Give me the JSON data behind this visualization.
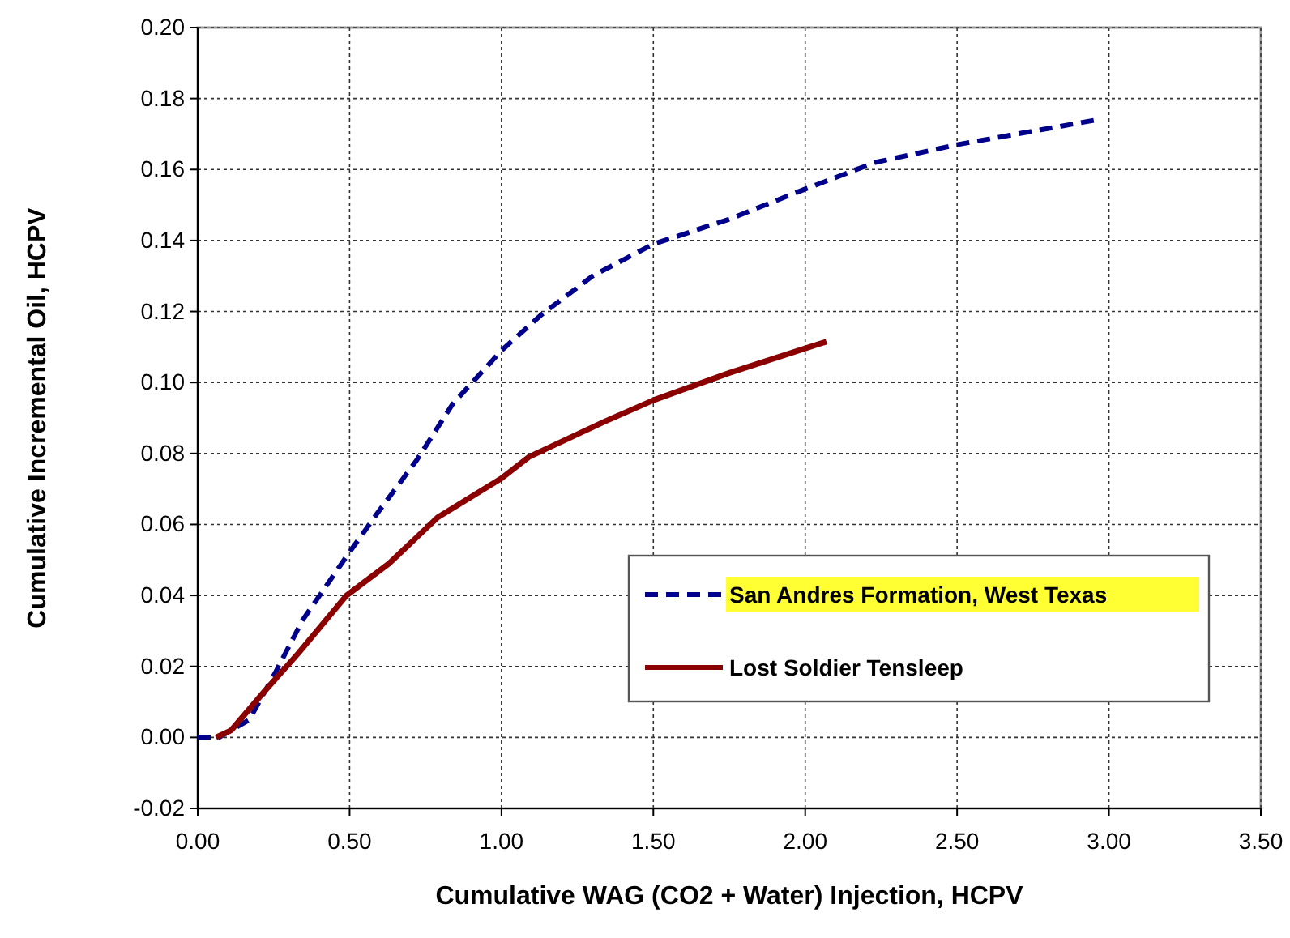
{
  "chart_data": {
    "type": "line",
    "xlabel": "Cumulative WAG (CO2 + Water) Injection, HCPV",
    "ylabel": "Cumulative Incremental Oil, HCPV",
    "xlim": [
      0,
      3.5
    ],
    "xticks": [
      {
        "value": 0,
        "label": "0.00"
      },
      {
        "value": 0.5,
        "label": "0.50"
      },
      {
        "value": 1,
        "label": "1.00"
      },
      {
        "value": 1.5,
        "label": "1.50"
      },
      {
        "value": 2,
        "label": "2.00"
      },
      {
        "value": 2.5,
        "label": "2.50"
      },
      {
        "value": 3,
        "label": "3.00"
      },
      {
        "value": 3.5,
        "label": "3.50"
      }
    ],
    "ylim": [
      -0.02,
      0.2
    ],
    "yticks": [
      {
        "value": -0.02,
        "label": "-0.02"
      },
      {
        "value": 0,
        "label": "0.00"
      },
      {
        "value": 0.02,
        "label": "0.02"
      },
      {
        "value": 0.04,
        "label": "0.04"
      },
      {
        "value": 0.06,
        "label": "0.06"
      },
      {
        "value": 0.08,
        "label": "0.08"
      },
      {
        "value": 0.1,
        "label": "0.10"
      },
      {
        "value": 0.12,
        "label": "0.12"
      },
      {
        "value": 0.14,
        "label": "0.14"
      },
      {
        "value": 0.16,
        "label": "0.16"
      },
      {
        "value": 0.18,
        "label": "0.18"
      },
      {
        "value": 0.2,
        "label": "0.20"
      }
    ],
    "grid": true,
    "legend": "bottom right",
    "marker": "none",
    "series": [
      {
        "name": "San Andres Formation, West Texas",
        "color": "#00008b",
        "line_style": "dashed",
        "x": [
          0,
          0.07,
          0.17,
          0.26,
          0.345,
          0.49,
          0.59,
          0.72,
          0.84,
          1.0,
          1.13,
          1.3,
          1.5,
          1.75,
          2.0,
          2.23,
          2.5,
          2.73,
          2.96
        ],
        "values": [
          0,
          0,
          0.005,
          0.019,
          0.033,
          0.051,
          0.063,
          0.078,
          0.094,
          0.109,
          0.119,
          0.13,
          0.139,
          0.146,
          0.1545,
          0.162,
          0.167,
          0.1705,
          0.174
        ]
      },
      {
        "name": "Lost Soldier Tensleep",
        "color": "#8b0000",
        "line_style": "solid",
        "x": [
          0.06,
          0.11,
          0.22,
          0.33,
          0.49,
          0.63,
          0.79,
          1.0,
          1.09,
          1.34,
          1.5,
          1.75,
          2.0,
          2.07
        ],
        "values": [
          0,
          0.002,
          0.013,
          0.0236,
          0.04,
          0.049,
          0.062,
          0.073,
          0.079,
          0.089,
          0.095,
          0.1027,
          0.1096,
          0.1115
        ]
      }
    ]
  }
}
